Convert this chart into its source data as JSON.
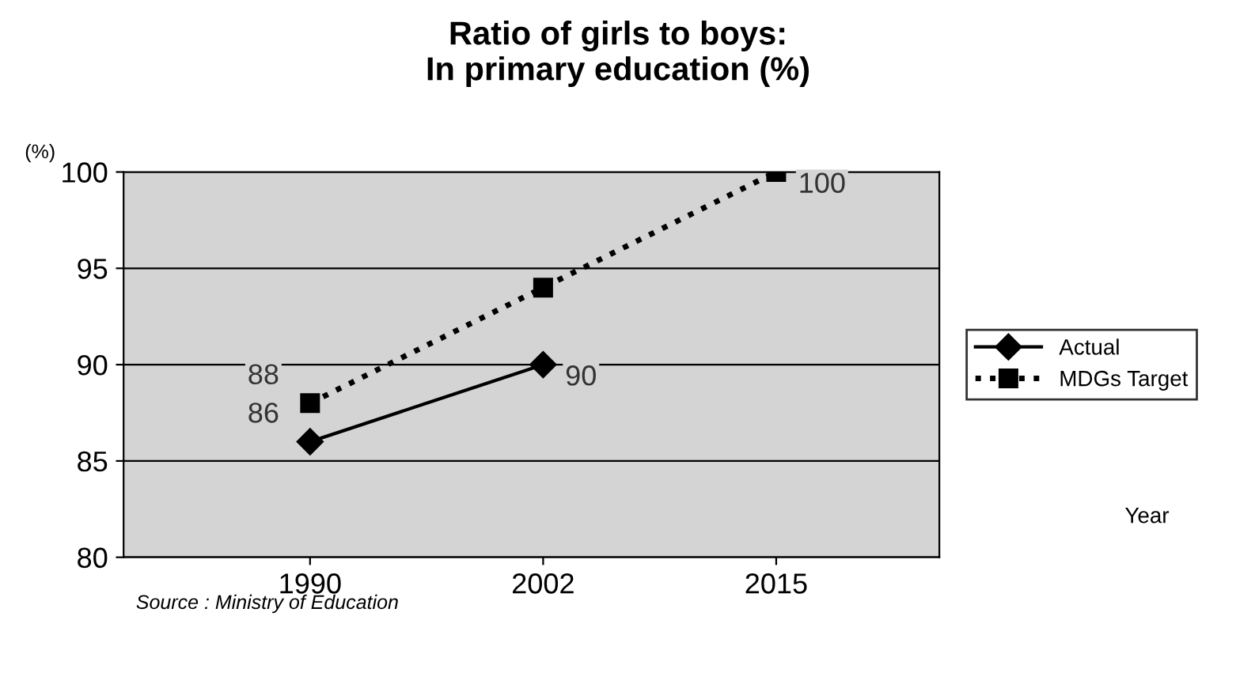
{
  "chart_data": {
    "type": "line",
    "title": "Ratio of girls to boys:\nIn primary education (%)",
    "ylabel": "(%)",
    "categories": [
      "1990",
      "2002",
      "2015"
    ],
    "series": [
      {
        "name": "Actual",
        "color": "#000000",
        "values": [
          86,
          90,
          null
        ],
        "value_labels": [
          "86",
          "90",
          null
        ],
        "marker": "diamond",
        "line_style": "solid"
      },
      {
        "name": "MDGs Target",
        "color": "#000000",
        "values": [
          88,
          94,
          100
        ],
        "value_labels": [
          "88",
          null,
          "100"
        ],
        "marker": "square",
        "line_style": "dotted"
      }
    ],
    "ylim": [
      80,
      100
    ],
    "yticks": [
      80,
      85,
      90,
      95,
      100
    ],
    "grid": "y",
    "legend": "right",
    "annotations": [
      "Year",
      "Source : Ministry of Education"
    ]
  }
}
